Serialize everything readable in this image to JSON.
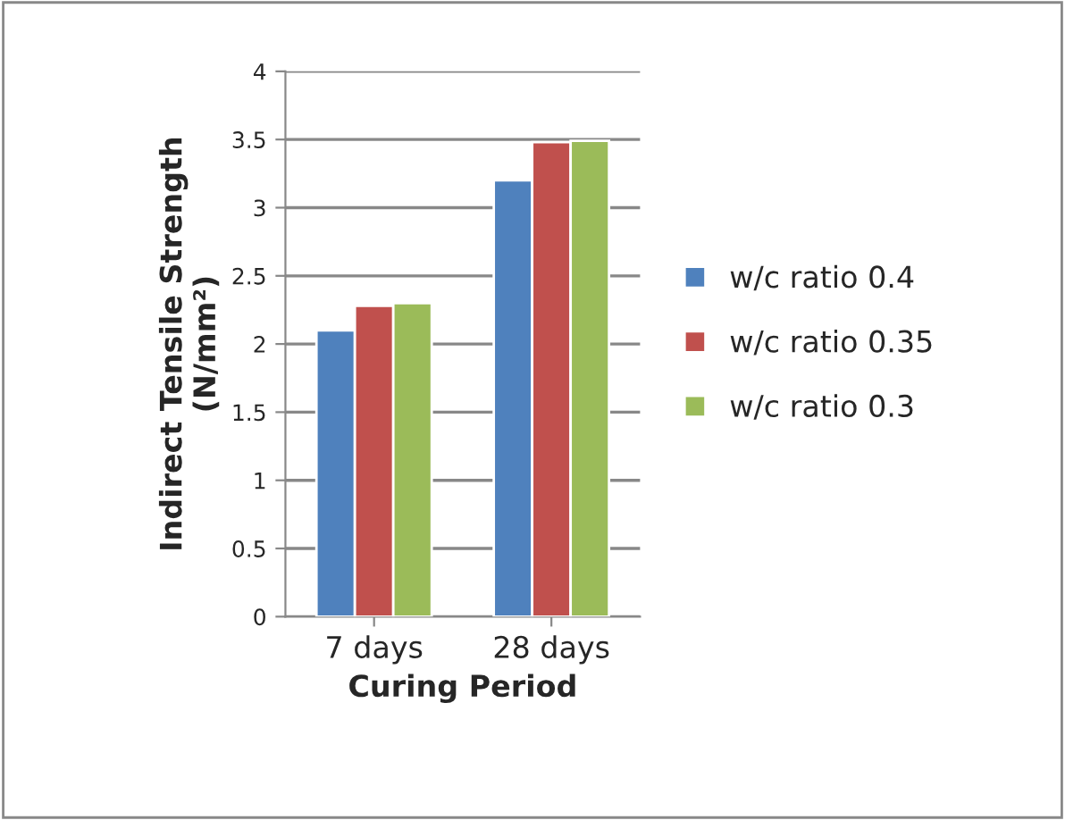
{
  "chart_data": {
    "type": "bar",
    "xlabel": "Curing Period",
    "ylabel": "Indirect Tensile Strength\n(N/mm²)",
    "categories": [
      "7 days",
      "28 days"
    ],
    "series": [
      {
        "name": "w/c ratio 0.4",
        "color": "#4f81bd",
        "values": [
          2.1,
          3.2
        ]
      },
      {
        "name": "w/c ratio 0.35",
        "color": "#c0504d",
        "values": [
          2.28,
          3.48
        ]
      },
      {
        "name": "w/c ratio 0.3",
        "color": "#9bbb59",
        "values": [
          2.3,
          3.49
        ]
      }
    ],
    "ylim": [
      0,
      4
    ],
    "yticks": [
      0,
      0.5,
      1,
      1.5,
      2,
      2.5,
      3,
      3.5,
      4
    ],
    "grid": "y",
    "legend": "right"
  }
}
